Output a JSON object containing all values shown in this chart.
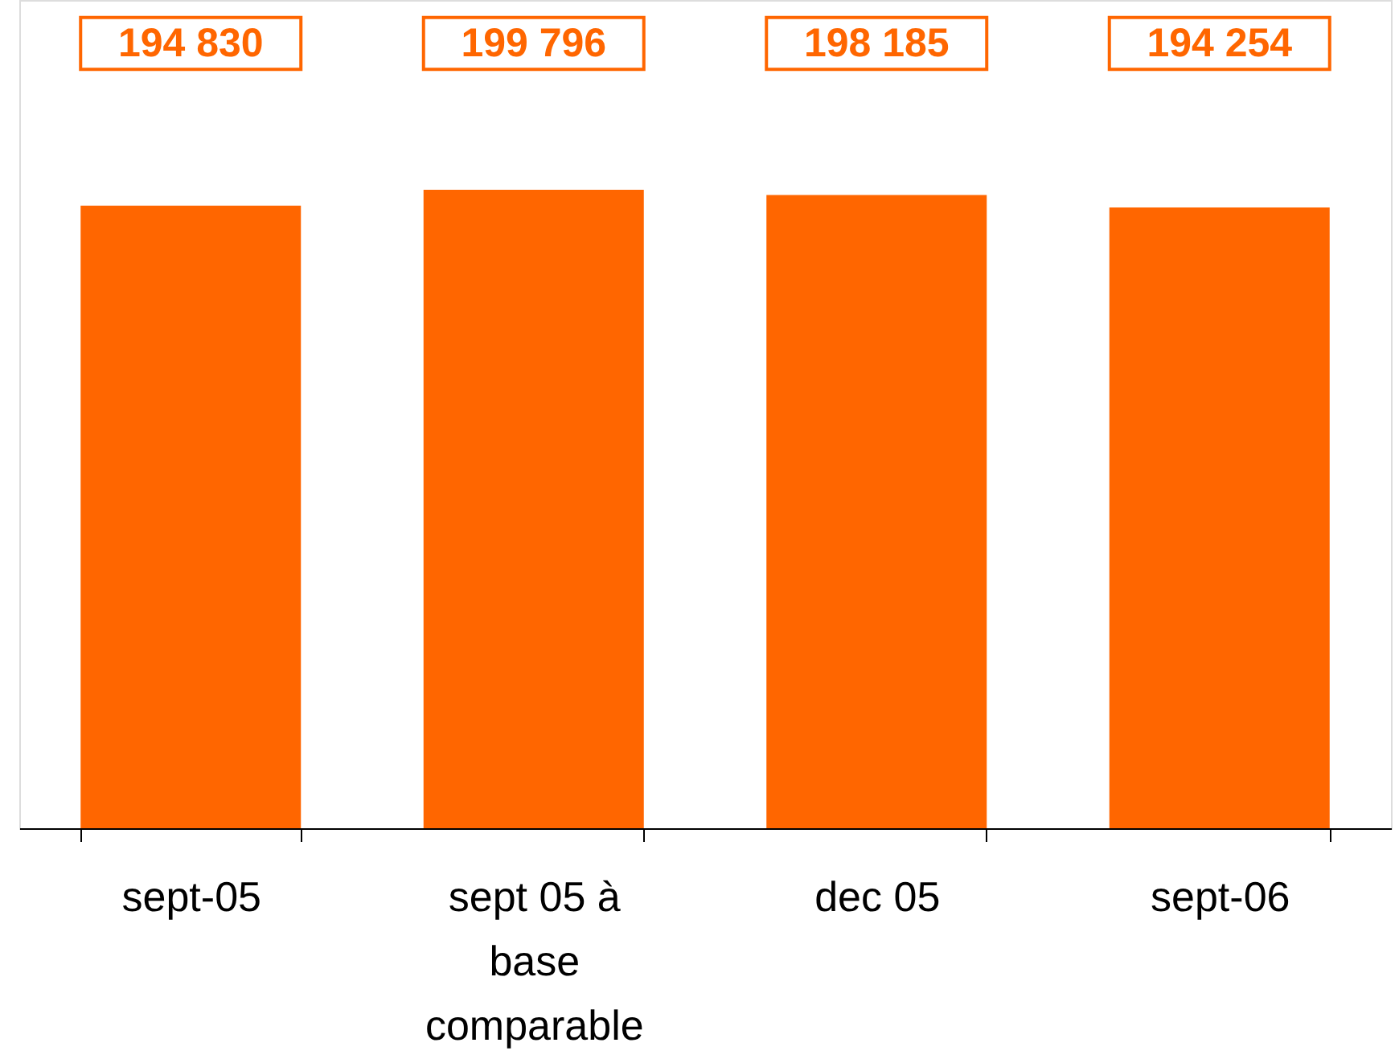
{
  "chart_data": {
    "type": "bar",
    "categories": [
      "sept-05",
      "sept 05 à base comparable",
      "dec 05",
      "sept-06"
    ],
    "values": [
      194830,
      199796,
      198185,
      194254
    ],
    "value_labels": [
      "194 830",
      "199 796",
      "198 185",
      "194 254"
    ],
    "color": "#ff6600"
  }
}
